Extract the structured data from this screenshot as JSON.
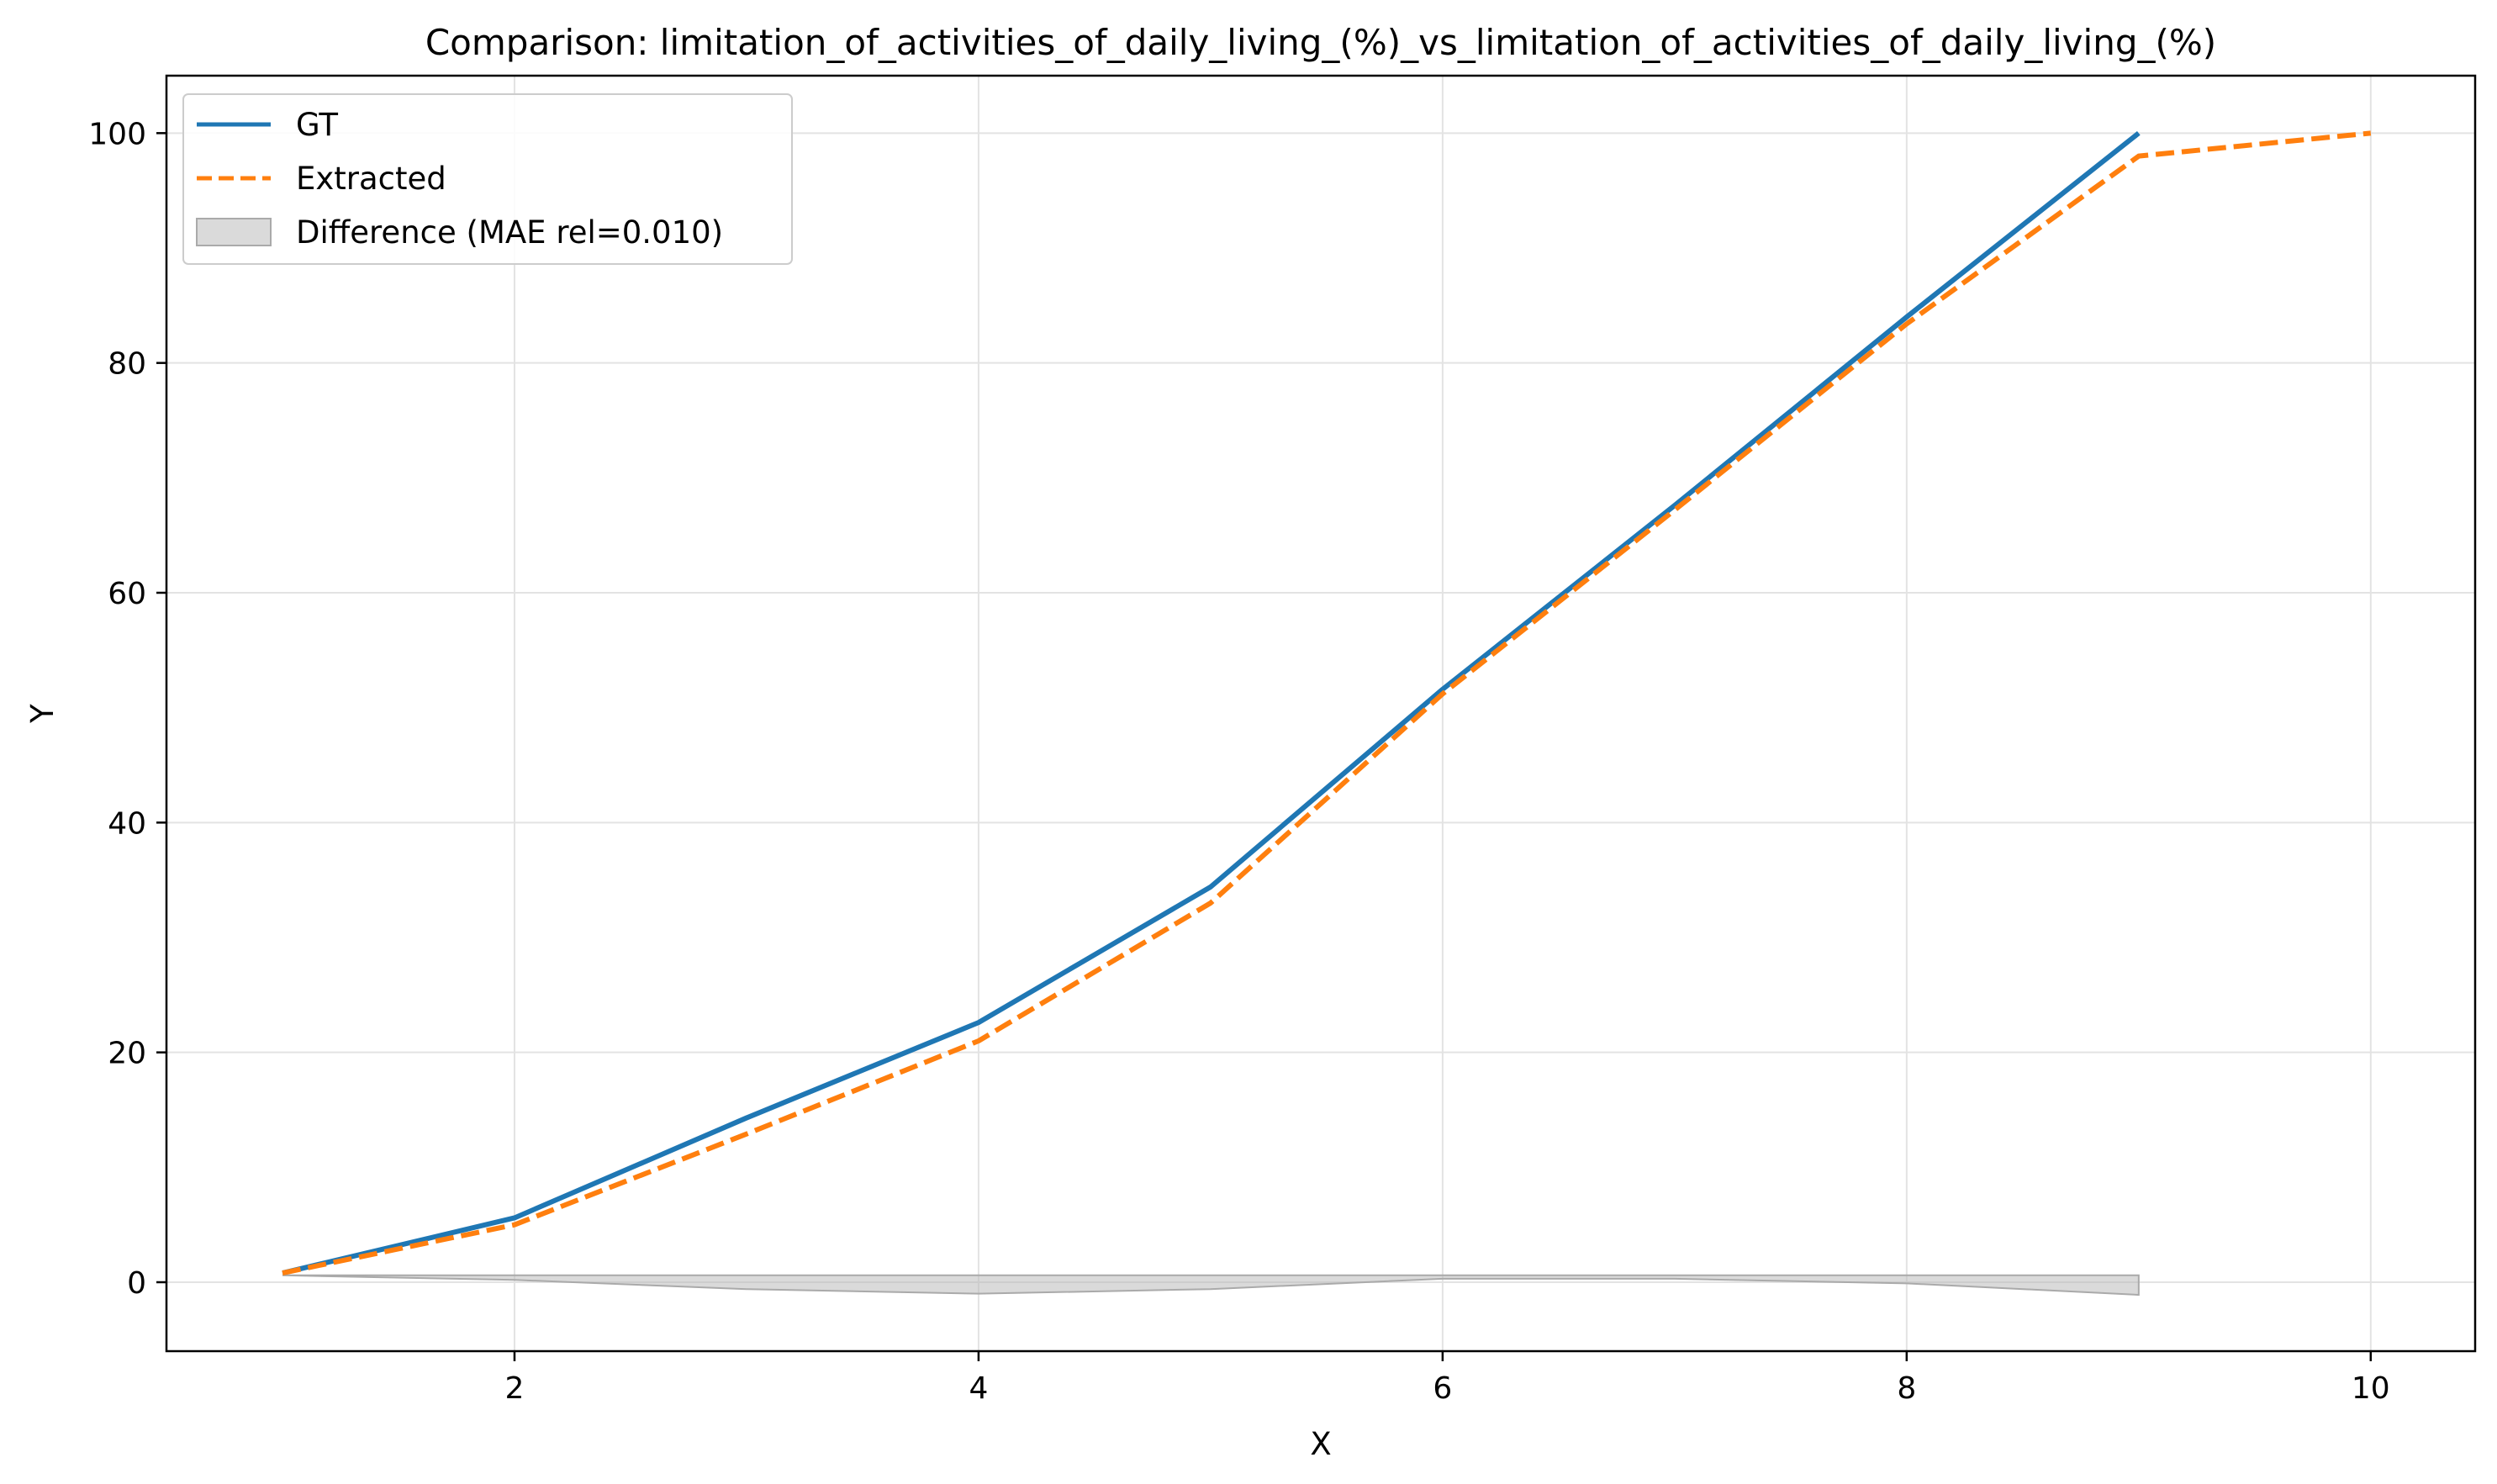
{
  "chart_data": {
    "type": "line",
    "title": "Comparison: limitation_of_activities_of_daily_living_(%)_vs_limitation_of_activities_of_daily_living_(%)",
    "xlabel": "X",
    "ylabel": "Y",
    "xlim": [
      0.5,
      10.45
    ],
    "ylim": [
      -6,
      105
    ],
    "xticks": [
      2,
      4,
      6,
      8,
      10
    ],
    "yticks": [
      0,
      20,
      40,
      60,
      80,
      100
    ],
    "grid": true,
    "legend_position": "top-left",
    "series": [
      {
        "name": "GT",
        "style": "solid",
        "color": "#1f77b4",
        "x": [
          1,
          2,
          3,
          4,
          5,
          6,
          7,
          8,
          9
        ],
        "y": [
          0.8,
          5.6,
          14.3,
          22.6,
          34.4,
          51.6,
          67.6,
          84.0,
          100.0
        ]
      },
      {
        "name": "Extracted",
        "style": "dashed",
        "color": "#ff7f0e",
        "x": [
          1,
          2,
          3,
          4,
          5,
          6,
          7,
          8,
          9,
          10
        ],
        "y": [
          0.8,
          5.0,
          12.9,
          21.0,
          33.0,
          51.2,
          67.2,
          83.4,
          98.0,
          100.0
        ]
      }
    ],
    "difference": {
      "name": "Difference (MAE rel=0.010)",
      "color": "#bbbbbb",
      "x": [
        1,
        2,
        3,
        4,
        5,
        6,
        7,
        8,
        9
      ],
      "upper": [
        0.6,
        0.6,
        0.6,
        0.6,
        0.6,
        0.6,
        0.6,
        0.6,
        0.6
      ],
      "lower": [
        0.6,
        0.2,
        -0.6,
        -1.0,
        -0.6,
        0.3,
        0.3,
        -0.1,
        -1.1
      ]
    }
  }
}
